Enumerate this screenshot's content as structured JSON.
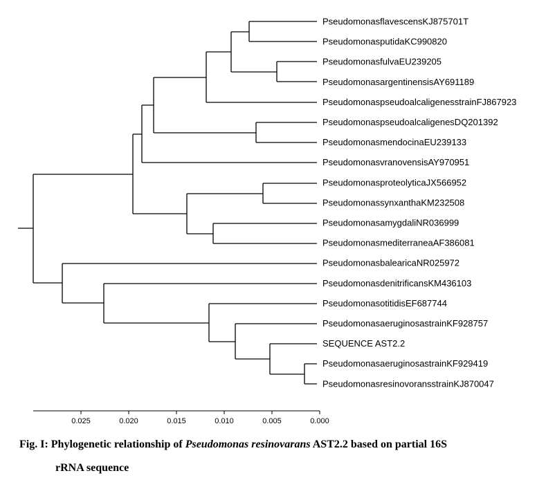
{
  "tree": {
    "leaves": [
      "PseudomonasflavescensKJ875701T",
      "PseudomonasputidaKC990820",
      "PseudomonasfulvaEU239205",
      "PseudomonasargentinensisAY691189",
      "PseudomonaspseudoalcaligenesstrainFJ867923",
      "PseudomonaspseudoalcaligenesDQ201392",
      "PseudomonasmendocinaEU239133",
      "PseudomonasvranovensisAY970951",
      "PseudomonasproteolyticaJX566952",
      "PseudomonassynxanthaKM232508",
      "PseudomonasamygdaliNR036999",
      "PseudomonasmediterraneaAF386081",
      "PseudomonasbalearicaNR025972",
      "PseudomonasdenitrificansKM436103",
      "PseudomonasotitidisEF687744",
      "PseudomonasaeruginosastrainKF928757",
      "SEQUENCE AST2.2",
      "PseudomonasaeruginosastrainKF929419",
      "PseudomonasresinovoransstrainKJ870047"
    ]
  },
  "axis": {
    "ticks": [
      "0.025",
      "0.020",
      "0.015",
      "0.010",
      "0.005",
      "0.000"
    ]
  },
  "caption": {
    "prefix": "Fig. I: Phylogenetic relationship of ",
    "species": "Pseudomonas resinovarans",
    "suffix_line1": " AST2.2 based on partial 16S",
    "line2": "rRNA sequence"
  }
}
